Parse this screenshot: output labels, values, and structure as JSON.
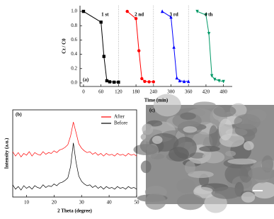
{
  "chart_data": [
    {
      "type": "line",
      "xlabel": "Time (min)",
      "ylabel": "Ct / C0",
      "panel_label": "(a)",
      "annotations": [
        "1 st",
        "2 nd",
        "3 rd",
        "4 th"
      ],
      "xlim": [
        -12,
        510
      ],
      "xticks": [
        0,
        60,
        120,
        180,
        240,
        300,
        360,
        420,
        480
      ],
      "ylim": [
        -0.05,
        1.08
      ],
      "yticks": [
        {
          "value": 0,
          "label": "0.0"
        },
        {
          "value": 0.2,
          "label": "0.2"
        },
        {
          "value": 0.4,
          "label": "0.4"
        },
        {
          "value": 0.6,
          "label": "0.6"
        },
        {
          "value": 0.8,
          "label": "0.8"
        },
        {
          "value": 1,
          "label": "1.0"
        }
      ],
      "vlines": [
        120,
        240,
        360
      ],
      "series": [
        {
          "color": "#000000",
          "marker": "square",
          "x": [
            0,
            60,
            70,
            80,
            90,
            105,
            120
          ],
          "values": [
            1.0,
            0.85,
            0.37,
            0.03,
            0.015,
            0.01,
            0.01
          ]
        },
        {
          "color": "#ff0000",
          "marker": "circle",
          "x": [
            150,
            180,
            190,
            200,
            210,
            225,
            240
          ],
          "values": [
            1.0,
            0.9,
            0.45,
            0.06,
            0.02,
            0.015,
            0.015
          ]
        },
        {
          "color": "#0000ff",
          "marker": "triangle",
          "x": [
            270,
            300,
            310,
            320,
            330,
            345,
            360
          ],
          "values": [
            1.0,
            0.92,
            0.5,
            0.07,
            0.03,
            0.02,
            0.02
          ]
        },
        {
          "color": "#009966",
          "marker": "down-triangle",
          "x": [
            390,
            420,
            430,
            440,
            450,
            465,
            480
          ],
          "values": [
            1.0,
            0.95,
            0.69,
            0.1,
            0.05,
            0.03,
            0.02
          ]
        }
      ]
    },
    {
      "type": "line",
      "xlabel": "2 Theta (degree)",
      "ylabel": "Intensity (a.u.)",
      "panel_label": "(b)",
      "legend": "upper right",
      "xlim": [
        5,
        50
      ],
      "xticks": [
        10,
        20,
        30,
        40,
        50
      ],
      "ylim": [
        0,
        100
      ],
      "series": [
        {
          "name": "After",
          "color": "#ff0000",
          "x": [
            5,
            6,
            7,
            8,
            9,
            10,
            11,
            12,
            13,
            14,
            15,
            16,
            17,
            18,
            19,
            20,
            21,
            22,
            23,
            24,
            25,
            26,
            27,
            28,
            29,
            30,
            31,
            32,
            33,
            34,
            35,
            36,
            37,
            38,
            39,
            40,
            41,
            42,
            43,
            44,
            45,
            46,
            47,
            48,
            49,
            50
          ],
          "values": [
            52,
            47,
            51,
            46,
            50,
            48,
            52,
            47,
            51,
            49,
            48,
            52,
            49,
            51,
            50,
            53,
            51,
            54,
            55,
            57,
            60,
            70,
            86,
            74,
            61,
            56,
            53,
            51,
            52,
            49,
            51,
            48,
            50,
            47,
            50,
            48,
            49,
            47,
            50,
            48,
            49,
            47,
            50,
            48,
            49,
            47
          ]
        },
        {
          "name": "Before",
          "color": "#000000",
          "x": [
            5,
            6,
            7,
            8,
            9,
            10,
            11,
            12,
            13,
            14,
            15,
            16,
            17,
            18,
            19,
            20,
            21,
            22,
            23,
            24,
            25,
            26,
            27,
            28,
            29,
            30,
            31,
            32,
            33,
            34,
            35,
            36,
            37,
            38,
            39,
            40,
            41,
            42,
            43,
            44,
            45,
            46,
            47,
            48,
            49,
            50
          ],
          "values": [
            14,
            9,
            12,
            8,
            13,
            10,
            12,
            9,
            13,
            11,
            10,
            14,
            11,
            13,
            12,
            15,
            13,
            16,
            17,
            19,
            22,
            35,
            62,
            40,
            24,
            18,
            15,
            13,
            14,
            11,
            13,
            10,
            12,
            9,
            12,
            10,
            11,
            9,
            12,
            10,
            11,
            9,
            12,
            10,
            11,
            9
          ]
        }
      ]
    },
    {
      "type": "image",
      "panel_label": "(c)"
    }
  ]
}
